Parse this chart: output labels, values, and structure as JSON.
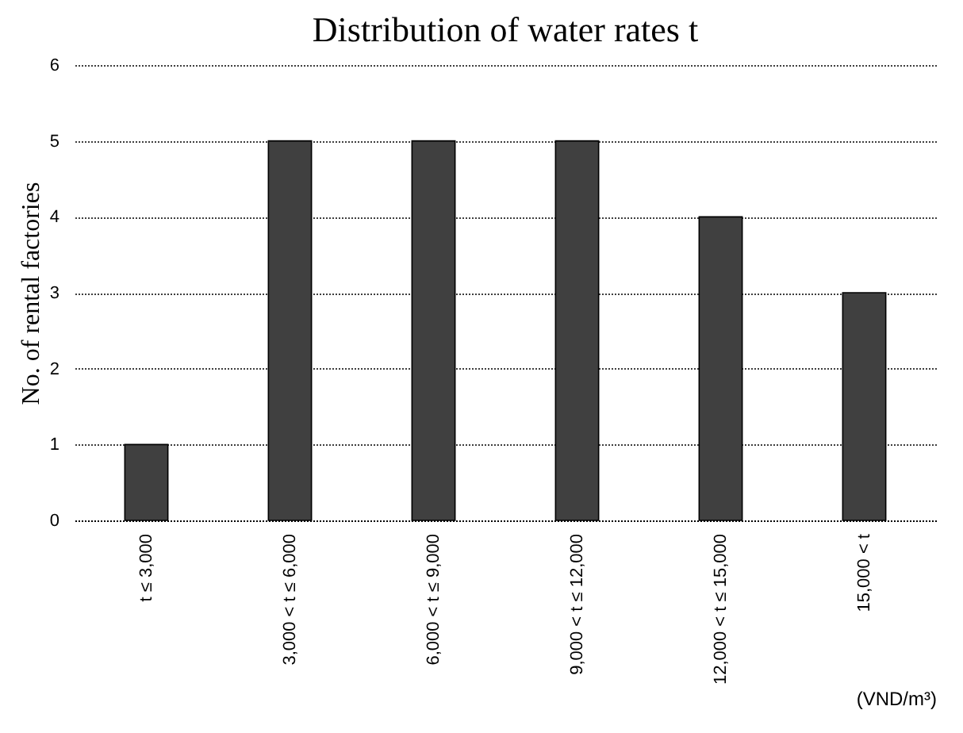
{
  "chart_data": {
    "type": "bar",
    "title": "Distribution of water rates t",
    "xlabel": "(VND/m³)",
    "ylabel": "No. of rental factories",
    "categories": [
      "t ≤ 3,000",
      "3,000 < t ≤ 6,000",
      "6,000 < t ≤ 9,000",
      "9,000 < t ≤ 12,000",
      "12,000 < t ≤ 15,000",
      "15,000 < t"
    ],
    "values": [
      1,
      5,
      5,
      5,
      4,
      3
    ],
    "color": "#404040",
    "ylim": [
      0,
      6
    ],
    "yticks": [
      0,
      1,
      2,
      3,
      4,
      5,
      6
    ],
    "grid": "y"
  }
}
